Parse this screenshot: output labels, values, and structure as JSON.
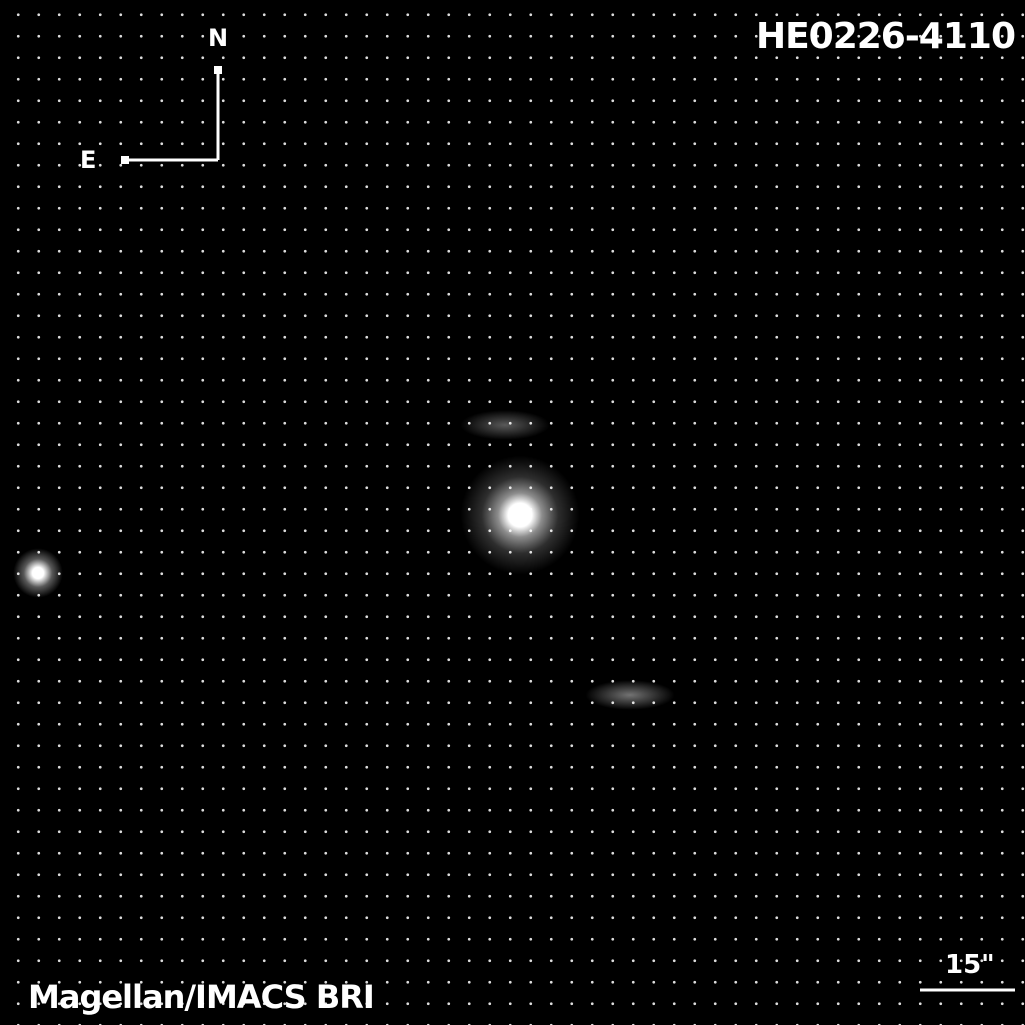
{
  "title": "HE0226-4110",
  "compass": {
    "north": "N",
    "east": "E"
  },
  "scale_bar": "15\"",
  "credit": "Magellan/IMACS BRI"
}
